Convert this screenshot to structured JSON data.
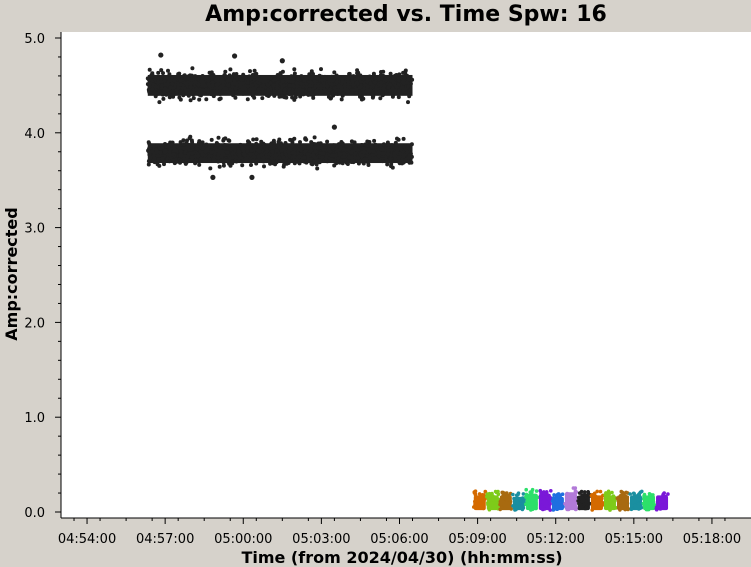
{
  "chart_data": {
    "type": "scatter",
    "title": "Amp:corrected vs. Time Spw: 16",
    "xlabel": "Time (from 2024/04/30) (hh:mm:ss)",
    "ylabel": "Amp:corrected",
    "x_unit": "hh:mm:ss",
    "xlim": [
      "04:53:00",
      "05:19:30"
    ],
    "ylim": [
      0.0,
      5.0
    ],
    "x_ticks": [
      "04:54:00",
      "04:57:00",
      "05:00:00",
      "05:03:00",
      "05:06:00",
      "05:09:00",
      "05:12:00",
      "05:15:00",
      "05:18:00"
    ],
    "y_ticks": [
      "0.0",
      "1.0",
      "2.0",
      "3.0",
      "4.0",
      "5.0"
    ],
    "grid": false,
    "series": [
      {
        "color": "#222222",
        "bands": [
          {
            "x_start": "04:56:20",
            "x_end": "05:06:30",
            "y_min": 4.3,
            "y_max": 4.7,
            "y_center": 4.5
          },
          {
            "x_start": "04:56:20",
            "x_end": "05:06:30",
            "y_min": 3.6,
            "y_max": 3.98,
            "y_center": 3.78
          }
        ],
        "outliers": [
          {
            "x": "04:56:50",
            "y": 4.82
          },
          {
            "x": "04:59:40",
            "y": 4.81
          },
          {
            "x": "05:01:30",
            "y": 4.76
          },
          {
            "x": "05:03:30",
            "y": 4.06
          },
          {
            "x": "04:58:50",
            "y": 3.53
          },
          {
            "x": "05:00:20",
            "y": 3.53
          }
        ]
      },
      {
        "scans": [
          {
            "x_start": "05:08:50",
            "x_end": "05:09:20",
            "y_min": 0.02,
            "y_max": 0.22,
            "color": "#d46a00"
          },
          {
            "x_start": "05:09:20",
            "x_end": "05:09:50",
            "y_min": 0.02,
            "y_max": 0.22,
            "color": "#7ecb1a"
          },
          {
            "x_start": "05:09:50",
            "x_end": "05:10:20",
            "y_min": 0.02,
            "y_max": 0.22,
            "color": "#a86a10"
          },
          {
            "x_start": "05:10:20",
            "x_end": "05:10:50",
            "y_min": 0.02,
            "y_max": 0.2,
            "color": "#1a8fa0"
          },
          {
            "x_start": "05:10:50",
            "x_end": "05:11:20",
            "y_min": 0.02,
            "y_max": 0.24,
            "color": "#2de06a"
          },
          {
            "x_start": "05:11:20",
            "x_end": "05:11:50",
            "y_min": 0.02,
            "y_max": 0.24,
            "color": "#7a18d8"
          },
          {
            "x_start": "05:11:50",
            "x_end": "05:12:20",
            "y_min": 0.02,
            "y_max": 0.2,
            "color": "#1f6fe0"
          },
          {
            "x_start": "05:12:20",
            "x_end": "05:12:50",
            "y_min": 0.02,
            "y_max": 0.26,
            "color": "#b27ad8"
          },
          {
            "x_start": "05:12:50",
            "x_end": "05:13:20",
            "y_min": 0.02,
            "y_max": 0.22,
            "color": "#222222"
          },
          {
            "x_start": "05:13:20",
            "x_end": "05:13:50",
            "y_min": 0.02,
            "y_max": 0.22,
            "color": "#d46a00"
          },
          {
            "x_start": "05:13:50",
            "x_end": "05:14:20",
            "y_min": 0.02,
            "y_max": 0.22,
            "color": "#7ecb1a"
          },
          {
            "x_start": "05:14:20",
            "x_end": "05:14:50",
            "y_min": 0.02,
            "y_max": 0.22,
            "color": "#a86a10"
          },
          {
            "x_start": "05:14:50",
            "x_end": "05:15:20",
            "y_min": 0.02,
            "y_max": 0.22,
            "color": "#1a8fa0"
          },
          {
            "x_start": "05:15:20",
            "x_end": "05:15:50",
            "y_min": 0.02,
            "y_max": 0.22,
            "color": "#2de06a"
          },
          {
            "x_start": "05:15:50",
            "x_end": "05:16:20",
            "y_min": 0.02,
            "y_max": 0.22,
            "color": "#7a18d8"
          }
        ]
      }
    ]
  }
}
